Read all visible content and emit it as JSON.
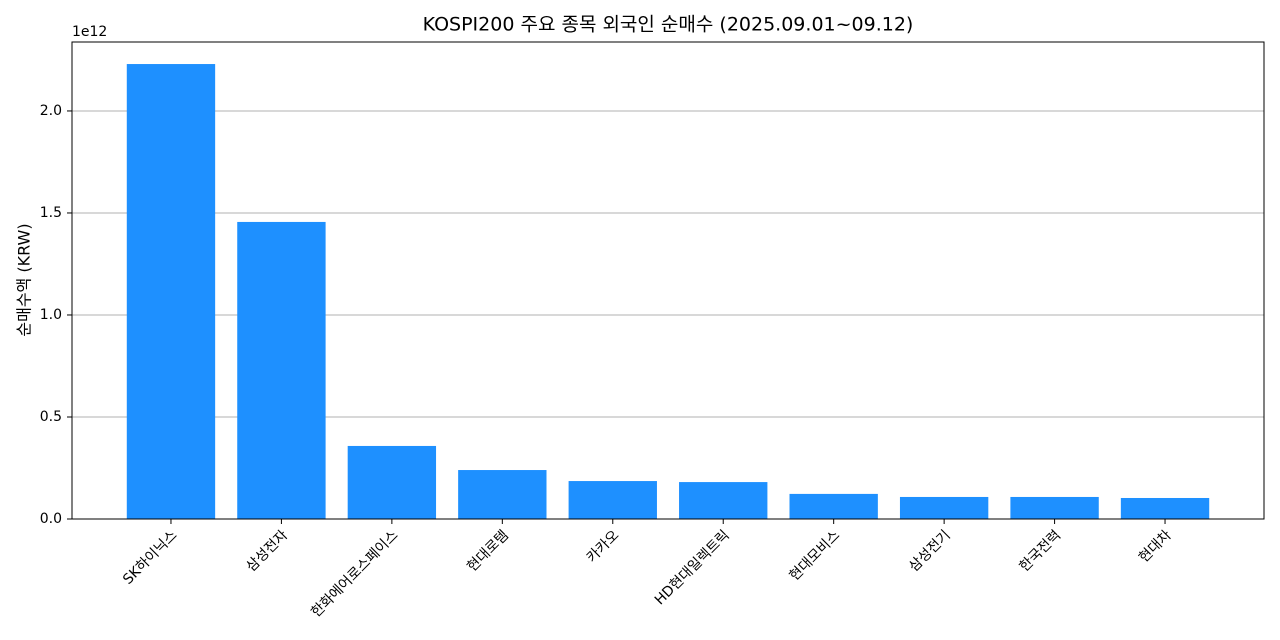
{
  "chart_data": {
    "type": "bar",
    "title": "KOSPI200 주요 종목 외국인 순매수 (2025.09.01~09.12)",
    "y_label": "순매수액 (KRW)",
    "y_offset_label": "1e12",
    "categories": [
      "SK하이닉스",
      "삼성전자",
      "한화에어로스페이스",
      "현대로템",
      "카카오",
      "HD현대일렉트릭",
      "현대모비스",
      "삼성전기",
      "한국전력",
      "현대차"
    ],
    "values": [
      2.23,
      1.456,
      0.358,
      0.24,
      0.186,
      0.181,
      0.123,
      0.108,
      0.108,
      0.103
    ],
    "color": "#1e90ff",
    "ylim": [
      0,
      2.338
    ],
    "yticks": [
      {
        "value": 0,
        "label": "0.0"
      },
      0.5,
      {
        "value": 1,
        "label": "1.0"
      },
      1.5,
      {
        "value": 2,
        "label": "2.0"
      }
    ],
    "grid": true
  }
}
